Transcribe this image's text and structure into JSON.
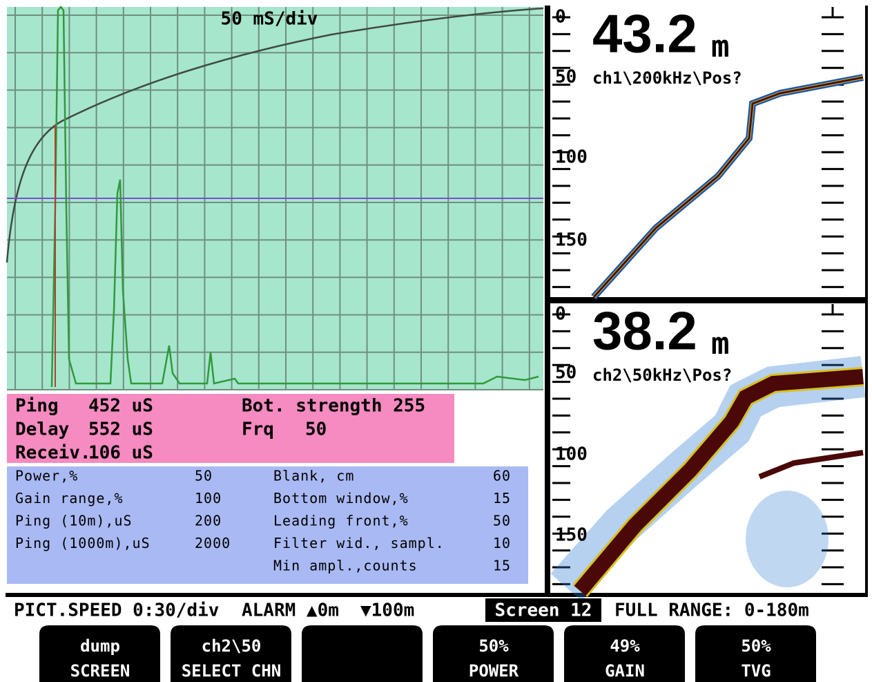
{
  "scope": {
    "timebase": "50 mS/div"
  },
  "readout": {
    "rows": [
      [
        "Ping",
        "452 uS"
      ],
      [
        "Delay",
        "552 uS"
      ],
      [
        "Receiv.",
        "106 uS"
      ]
    ],
    "bottom_strength": "Bot. strength 255",
    "frequency": [
      "Frq",
      "50"
    ]
  },
  "settings": {
    "left": [
      [
        "Power,%",
        50
      ],
      [
        "Gain range,%",
        100
      ],
      [
        "Ping  (10m),uS",
        200
      ],
      [
        "Ping (1000m),uS",
        2000
      ]
    ],
    "right": [
      [
        "Blank, cm",
        60
      ],
      [
        "Bottom window,%",
        15
      ],
      [
        "Leading front,%",
        50
      ],
      [
        "Filter wid., sampl.",
        10
      ],
      [
        "Min ampl.,counts",
        15
      ]
    ]
  },
  "echograms": [
    {
      "depth": "43.2",
      "unit": "m",
      "channel": "ch1\\200kHz\\Pos?",
      "scale": [
        "0",
        "50",
        "100",
        "150"
      ]
    },
    {
      "depth": "38.2",
      "unit": "m",
      "channel": "ch2\\50kHz\\Pos?",
      "scale": [
        "0",
        "50",
        "100",
        "150"
      ]
    }
  ],
  "status": {
    "speed": "PICT.SPEED 0:30/div",
    "alarm": "ALARM ▲0m",
    "alarm_low": "▼100m",
    "screen": "Screen 12",
    "range": "FULL RANGE: 0-180m"
  },
  "buttons": [
    [
      "dump",
      "SCREEN"
    ],
    [
      "ch2\\50",
      "SELECT CHN"
    ],
    [
      "50%",
      "POWER"
    ],
    [
      "49%",
      "GAIN"
    ],
    [
      "50%",
      "TVG"
    ]
  ]
}
